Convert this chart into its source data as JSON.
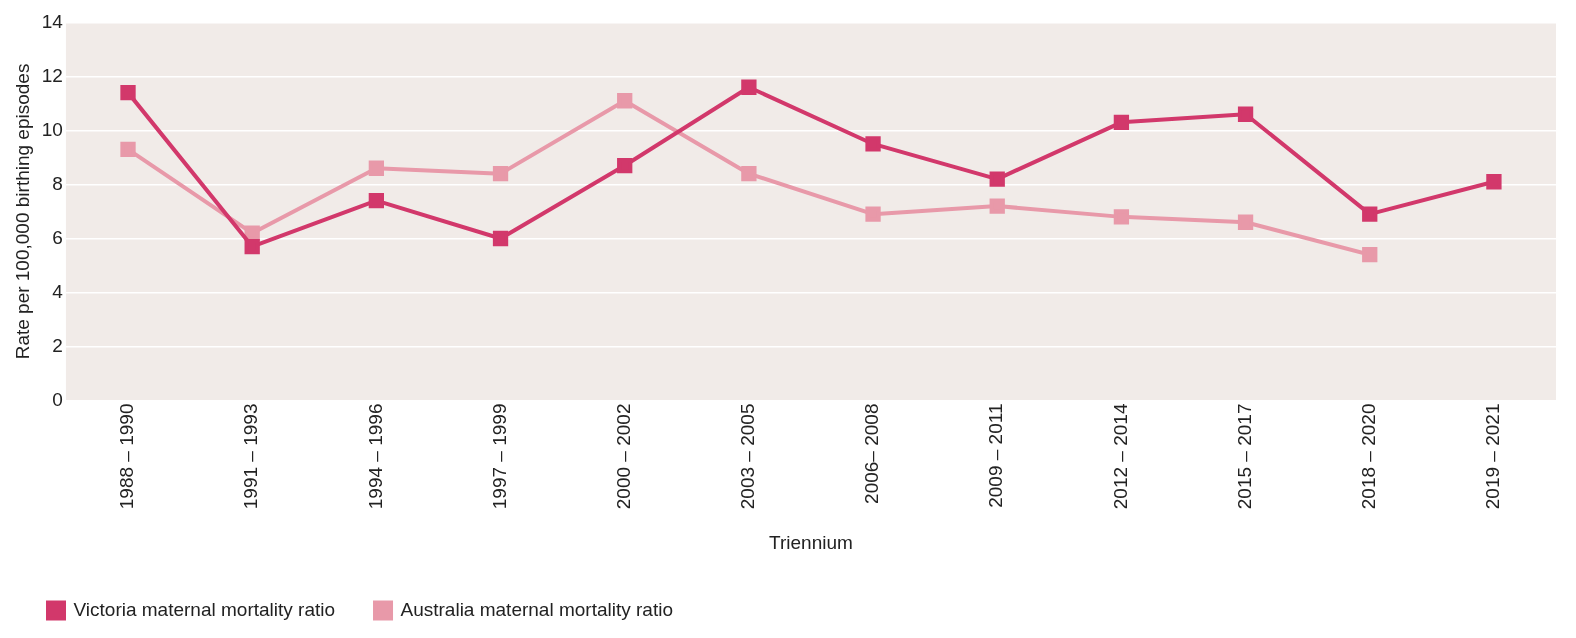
{
  "chart_data": {
    "type": "line",
    "xlabel": "Triennium",
    "ylabel": "Rate per 100,000 birthing episodes",
    "categories": [
      "1988 – 1990",
      "1991 – 1993",
      "1994 – 1996",
      "1997 – 1999",
      "2000 – 2002",
      "2003 – 2005",
      "2006– 2008",
      "2009 – 2011",
      "2012 – 2014",
      "2015 – 2017",
      "2018 – 2020",
      "2019 – 2021"
    ],
    "series": [
      {
        "name": "Victoria maternal mortality ratio",
        "color": "#d2386b",
        "values": [
          11.4,
          5.7,
          7.4,
          6.0,
          8.7,
          11.6,
          9.5,
          8.2,
          10.3,
          10.6,
          6.9,
          8.1
        ]
      },
      {
        "name": "Australia maternal mortality ratio",
        "color": "#e899a9",
        "values": [
          9.3,
          6.2,
          8.6,
          8.4,
          11.1,
          8.4,
          6.9,
          7.2,
          6.8,
          6.6,
          5.4,
          null
        ]
      }
    ],
    "ylim": [
      0,
      14
    ],
    "yticks": [
      0,
      2,
      4,
      6,
      8,
      10,
      12,
      14
    ],
    "grid": "y",
    "legend": "bottom left",
    "marker": "square",
    "line_style": "solid"
  }
}
